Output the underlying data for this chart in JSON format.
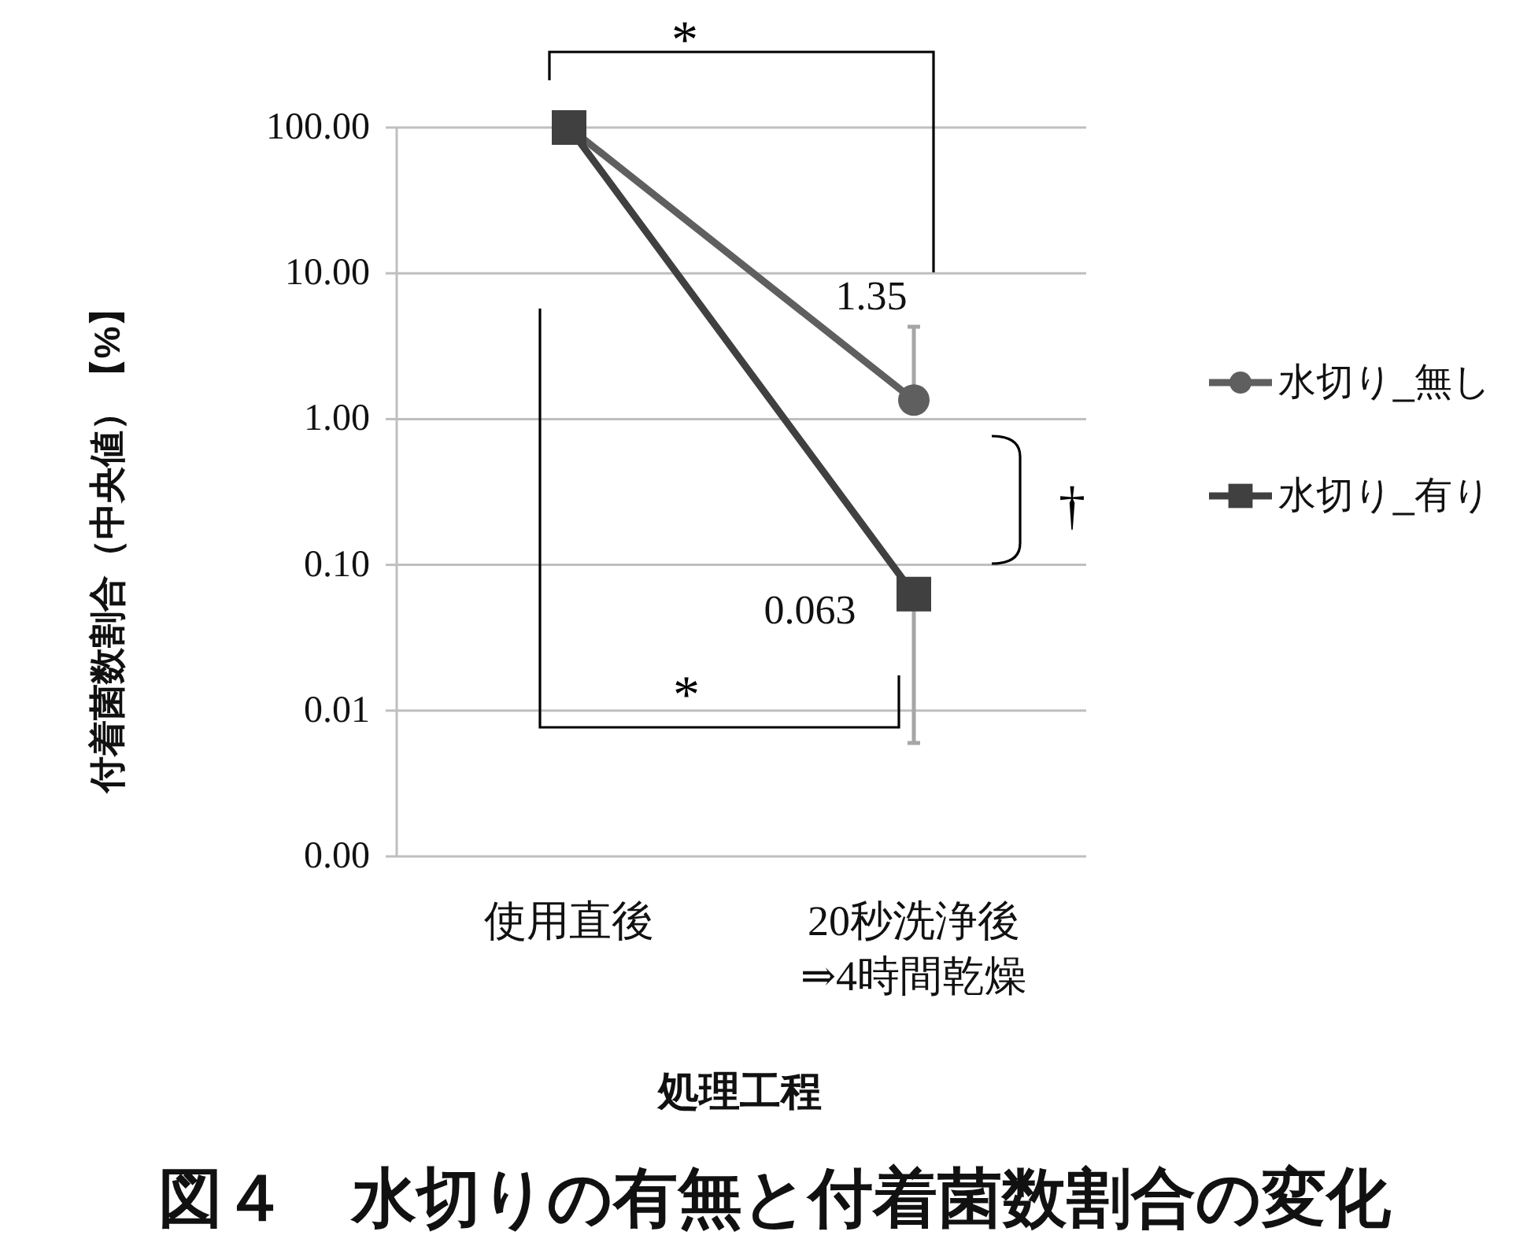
{
  "chart_data": {
    "type": "line",
    "title": "図４　水切りの有無と付着菌数割合の変化",
    "xlabel": "処理工程",
    "ylabel": "付着菌数割合（中央値）【%】",
    "categories": [
      "使用直後",
      "20秒洗浄後\n⇒4時間乾燥"
    ],
    "series": [
      {
        "name": "水切り_無し",
        "color": "#5f5f5f",
        "marker": "circle",
        "values": [
          100,
          1.35
        ],
        "errors": [
          null,
          [
            1.35,
            4.3
          ]
        ],
        "value_labels": [
          null,
          "1.35"
        ]
      },
      {
        "name": "水切り_有り",
        "color": "#404040",
        "marker": "square",
        "values": [
          100,
          0.063
        ],
        "errors": [
          null,
          [
            0.006,
            0.063
          ]
        ],
        "value_labels": [
          null,
          "0.063"
        ]
      }
    ],
    "ylim": [
      0.001,
      100
    ],
    "yticks": [
      {
        "value": 0.001,
        "label": "0.00"
      },
      {
        "value": 0.01,
        "label": "0.01"
      },
      {
        "value": 0.1,
        "label": "0.10"
      },
      {
        "value": 1,
        "label": "1.00"
      },
      {
        "value": 10,
        "label": "10.00"
      },
      {
        "value": 100,
        "label": "100.00"
      }
    ],
    "log": true,
    "grid": "y",
    "legend": "right",
    "annotations": [
      "*",
      "*",
      "†"
    ]
  }
}
